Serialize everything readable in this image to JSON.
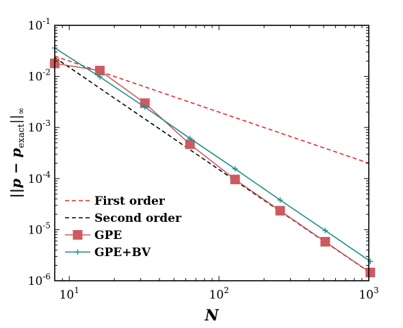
{
  "chart_data": {
    "type": "line",
    "xscale": "log",
    "yscale": "log",
    "xlim": [
      8,
      1000
    ],
    "ylim": [
      1e-06,
      0.1
    ],
    "xticks": [
      {
        "value": 10,
        "base": "10",
        "exp": "1"
      },
      {
        "value": 100,
        "base": "10",
        "exp": "2"
      },
      {
        "value": 1000,
        "base": "10",
        "exp": "3"
      }
    ],
    "yticks": [
      {
        "value": 1e-06,
        "base": "10",
        "exp": "-6"
      },
      {
        "value": 1e-05,
        "base": "10",
        "exp": "-5"
      },
      {
        "value": 0.0001,
        "base": "10",
        "exp": "-4"
      },
      {
        "value": 0.001,
        "base": "10",
        "exp": "-3"
      },
      {
        "value": 0.01,
        "base": "10",
        "exp": "-2"
      },
      {
        "value": 0.1,
        "base": "10",
        "exp": "-1"
      }
    ],
    "xlabel": "N",
    "ylabel": {
      "pre": "||p − p",
      "sub": "exact",
      "post": "||",
      "subpost": "∞"
    },
    "legend_position": "bottom-left",
    "series": [
      {
        "name": "First order",
        "color": "#e8262b",
        "style": "dashed",
        "marker": "none",
        "x": [
          8,
          1000
        ],
        "y": [
          0.025,
          0.0002
        ]
      },
      {
        "name": "Second order",
        "color": "#000000",
        "style": "dashed",
        "marker": "none",
        "x": [
          8,
          1000
        ],
        "y": [
          0.0235,
          1.5e-06
        ]
      },
      {
        "name": "GPE",
        "color": "#cc5b5f",
        "style": "solid",
        "marker": "square",
        "x": [
          8,
          16,
          32,
          64,
          128,
          256,
          512,
          1024
        ],
        "y": [
          0.018,
          0.013,
          0.003,
          0.00047,
          9.6e-05,
          2.35e-05,
          5.8e-06,
          1.45e-06
        ]
      },
      {
        "name": "GPE+BV",
        "color": "#1a8f87",
        "style": "solid",
        "marker": "plus",
        "x": [
          8,
          16,
          32,
          64,
          128,
          256,
          512,
          1024
        ],
        "y": [
          0.036,
          0.0098,
          0.0025,
          0.00061,
          0.000155,
          3.8e-05,
          9.6e-06,
          2.4e-06
        ]
      }
    ]
  }
}
